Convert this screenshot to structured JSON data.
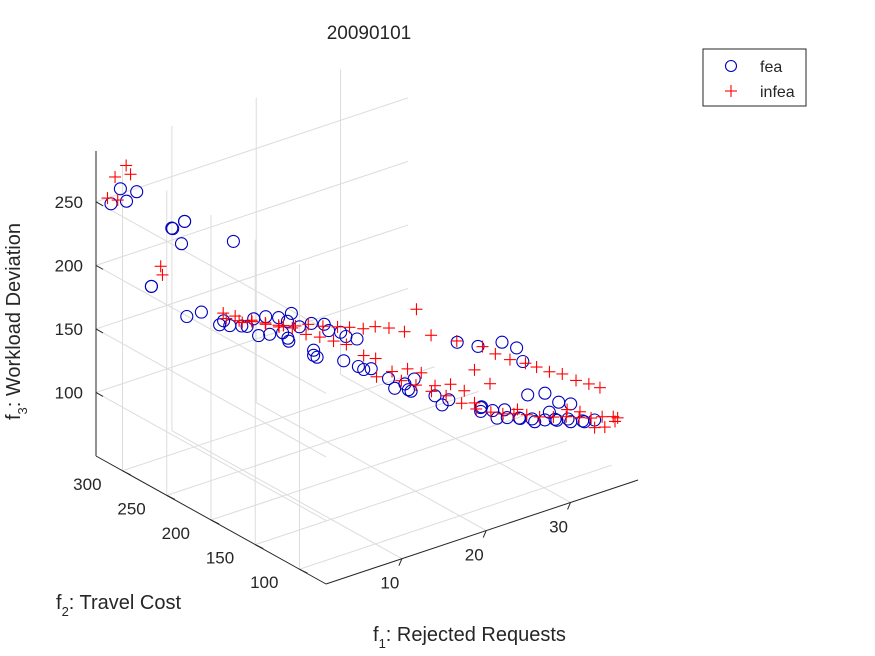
{
  "chart_data": {
    "type": "scatter3d",
    "title": "20090101",
    "xlabel": {
      "pre": "f",
      "sub": "1",
      "post": ": Rejected Requests"
    },
    "ylabel": {
      "pre": "f",
      "sub": "2",
      "post": ": Travel Cost"
    },
    "zlabel": {
      "pre": "f",
      "sub": "3",
      "post": ": Workload Deviation"
    },
    "xlim": [
      1,
      38
    ],
    "ylim": [
      70,
      330
    ],
    "zlim": [
      50,
      290
    ],
    "xticks": [
      "10",
      "20",
      "30"
    ],
    "yticks": [
      "100",
      "150",
      "200",
      "250",
      "300"
    ],
    "zticks": [
      "100",
      "150",
      "200",
      "250"
    ],
    "grid": true,
    "legend_position": "top-right",
    "series": [
      {
        "name": "fea",
        "marker": "circle",
        "color": "#0000bf",
        "points": [
          [
            1,
            313,
            255
          ],
          [
            2,
            312,
            265
          ],
          [
            2,
            305,
            258
          ],
          [
            3,
            303,
            264
          ],
          [
            6,
            292,
            233
          ],
          [
            6,
            291,
            233
          ],
          [
            7,
            287,
            238
          ],
          [
            7,
            287,
            238
          ],
          [
            6,
            281,
            225
          ],
          [
            4,
            296,
            190
          ],
          [
            4,
            296,
            190
          ],
          [
            11,
            270,
            220
          ],
          [
            6,
            275,
            170
          ],
          [
            7,
            268,
            174
          ],
          [
            9,
            262,
            165
          ],
          [
            8,
            257,
            166
          ],
          [
            9,
            255,
            164
          ],
          [
            10,
            251,
            163
          ],
          [
            10,
            245,
            165
          ],
          [
            11,
            247,
            168
          ],
          [
            12,
            243,
            169
          ],
          [
            13,
            238,
            168
          ],
          [
            14,
            233,
            171
          ],
          [
            13,
            228,
            169
          ],
          [
            14,
            224,
            164
          ],
          [
            15,
            220,
            166
          ],
          [
            16,
            215,
            165
          ],
          [
            16,
            210,
            162
          ],
          [
            17,
            206,
            160
          ],
          [
            17,
            200,
            159
          ],
          [
            18,
            197,
            156
          ],
          [
            12,
            251,
            151
          ],
          [
            13,
            248,
            151
          ],
          [
            14,
            243,
            152
          ],
          [
            14,
            237,
            150
          ],
          [
            14,
            236,
            148
          ],
          [
            16,
            227,
            140
          ],
          [
            16,
            223,
            136
          ],
          [
            16,
            227,
            136
          ],
          [
            18,
            212,
            133
          ],
          [
            19,
            205,
            129
          ],
          [
            20,
            200,
            127
          ],
          [
            19,
            199,
            129
          ],
          [
            21,
            190,
            121
          ],
          [
            23,
            180,
            120
          ],
          [
            22,
            181,
            118
          ],
          [
            21,
            183,
            116
          ],
          [
            22,
            177,
            115
          ],
          [
            22,
            174,
            115
          ],
          [
            24,
            166,
            110
          ],
          [
            25,
            160,
            107
          ],
          [
            24,
            158,
            106
          ],
          [
            27,
            142,
            104
          ],
          [
            27,
            143,
            103
          ],
          [
            27,
            143,
            100
          ],
          [
            28,
            139,
            100
          ],
          [
            29,
            135,
            100
          ],
          [
            28,
            134,
            96
          ],
          [
            29,
            132,
            95
          ],
          [
            30,
            128,
            94
          ],
          [
            30,
            127,
            94
          ],
          [
            31,
            123,
            93
          ],
          [
            31,
            120,
            92
          ],
          [
            32,
            118,
            92
          ],
          [
            33,
            116,
            91
          ],
          [
            33,
            114,
            91
          ],
          [
            34,
            111,
            91
          ],
          [
            34,
            108,
            90
          ],
          [
            35,
            104,
            90
          ],
          [
            35,
            102,
            90
          ],
          [
            36,
            100,
            90
          ],
          [
            26,
            160,
            150
          ],
          [
            27,
            146,
            150
          ],
          [
            29,
            138,
            152
          ],
          [
            30,
            131,
            148
          ],
          [
            30,
            124,
            140
          ],
          [
            31,
            128,
            110
          ],
          [
            32,
            118,
            113
          ],
          [
            33,
            112,
            106
          ],
          [
            34,
            108,
            104
          ],
          [
            32,
            113,
            100
          ]
        ]
      },
      {
        "name": "infea",
        "marker": "plus",
        "color": "#ff0000",
        "points": [
          [
            2,
            318,
            272
          ],
          [
            3,
            315,
            280
          ],
          [
            3,
            310,
            275
          ],
          [
            1,
            317,
            258
          ],
          [
            2,
            315,
            255
          ],
          [
            5,
            293,
            198
          ],
          [
            5,
            295,
            204
          ],
          [
            10,
            272,
            165
          ],
          [
            11,
            268,
            162
          ],
          [
            11,
            260,
            160
          ],
          [
            12,
            259,
            160
          ],
          [
            13,
            253,
            158
          ],
          [
            14,
            247,
            155
          ],
          [
            14,
            242,
            158
          ],
          [
            15,
            238,
            157
          ],
          [
            16,
            233,
            158
          ],
          [
            17,
            226,
            157
          ],
          [
            18,
            219,
            157
          ],
          [
            19,
            215,
            156
          ],
          [
            20,
            209,
            155
          ],
          [
            21,
            205,
            156
          ],
          [
            22,
            199,
            155
          ],
          [
            23,
            191,
            153
          ],
          [
            25,
            180,
            150
          ],
          [
            24,
            187,
            170
          ],
          [
            27,
            170,
            145
          ],
          [
            29,
            160,
            140
          ],
          [
            30,
            155,
            134
          ],
          [
            31,
            148,
            130
          ],
          [
            32,
            140,
            128
          ],
          [
            33,
            137,
            124
          ],
          [
            34,
            132,
            120
          ],
          [
            35,
            127,
            118
          ],
          [
            36,
            121,
            113
          ],
          [
            37,
            116,
            110
          ],
          [
            38,
            113,
            106
          ],
          [
            20,
            194,
            123
          ],
          [
            22,
            185,
            119
          ],
          [
            23,
            178,
            116
          ],
          [
            24,
            170,
            112
          ],
          [
            25,
            163,
            109
          ],
          [
            26,
            155,
            104
          ],
          [
            27,
            150,
            104
          ],
          [
            27,
            148,
            100
          ],
          [
            28,
            141,
            98
          ],
          [
            29,
            137,
            96
          ],
          [
            30,
            134,
            95
          ],
          [
            31,
            129,
            94
          ],
          [
            32,
            124,
            92
          ],
          [
            33,
            118,
            92
          ],
          [
            34,
            113,
            92
          ],
          [
            35,
            108,
            91
          ],
          [
            36,
            104,
            90
          ],
          [
            37,
            101,
            90
          ],
          [
            38,
            98,
            89
          ],
          [
            38,
            96,
            86
          ],
          [
            37,
            98,
            83
          ],
          [
            36,
            100,
            84
          ],
          [
            38,
            93,
            90
          ],
          [
            35,
            107,
            96
          ],
          [
            34,
            112,
            98
          ],
          [
            30,
            130,
            100
          ],
          [
            28,
            142,
            120
          ],
          [
            27,
            150,
            130
          ],
          [
            26,
            152,
            115
          ],
          [
            25,
            158,
            120
          ],
          [
            24,
            166,
            118
          ],
          [
            23,
            172,
            128
          ],
          [
            22,
            178,
            131
          ],
          [
            21,
            186,
            128
          ],
          [
            20,
            195,
            137
          ],
          [
            19,
            199,
            140
          ],
          [
            18,
            209,
            147
          ],
          [
            17,
            214,
            150
          ],
          [
            16,
            220,
            153
          ],
          [
            15,
            226,
            155
          ],
          [
            14,
            232,
            160
          ],
          [
            13,
            238,
            162
          ],
          [
            12,
            243,
            163
          ],
          [
            11,
            249,
            165
          ],
          [
            10,
            254,
            166
          ],
          [
            9,
            259,
            168
          ]
        ]
      }
    ]
  }
}
